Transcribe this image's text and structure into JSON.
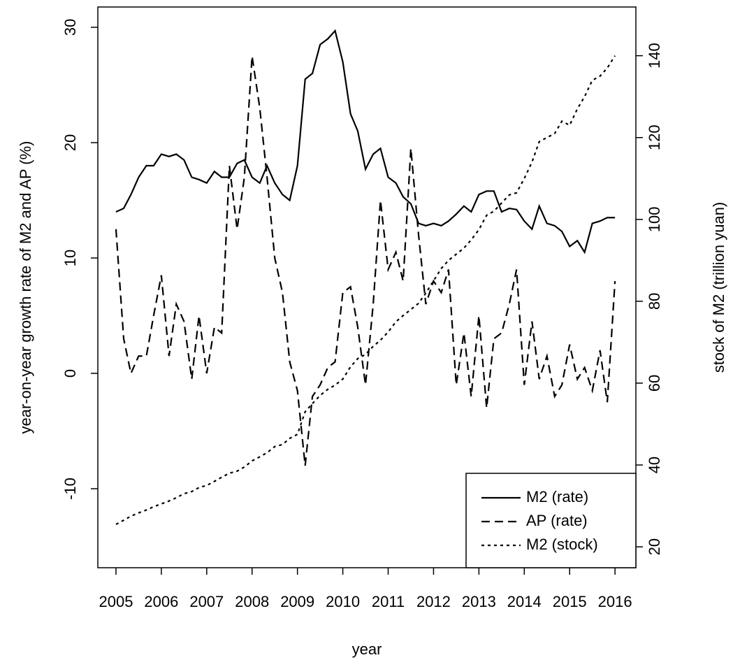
{
  "chart_data": {
    "type": "line",
    "xlabel": "year",
    "ylabel": "year-on-year growth rate of M2 and AP (%)",
    "y2label": "stock of M2 (trillion yuan)",
    "x": [
      2005,
      2005.17,
      2005.33,
      2005.5,
      2005.67,
      2005.83,
      2006,
      2006.17,
      2006.33,
      2006.5,
      2006.67,
      2006.83,
      2007,
      2007.17,
      2007.33,
      2007.5,
      2007.67,
      2007.83,
      2008,
      2008.17,
      2008.33,
      2008.5,
      2008.67,
      2008.83,
      2009,
      2009.17,
      2009.33,
      2009.5,
      2009.67,
      2009.83,
      2010,
      2010.17,
      2010.33,
      2010.5,
      2010.67,
      2010.83,
      2011,
      2011.17,
      2011.33,
      2011.5,
      2011.67,
      2011.83,
      2012,
      2012.17,
      2012.33,
      2012.5,
      2012.67,
      2012.83,
      2013,
      2013.17,
      2013.33,
      2013.5,
      2013.67,
      2013.83,
      2014,
      2014.17,
      2014.33,
      2014.5,
      2014.67,
      2014.83,
      2015,
      2015.17,
      2015.33,
      2015.5,
      2015.67,
      2015.83,
      2016
    ],
    "series": [
      {
        "name": "M2 (rate)",
        "color": "#000000",
        "style": "solid",
        "values": [
          14,
          14.3,
          15.5,
          17,
          18,
          18,
          19,
          18.8,
          19,
          18.5,
          17,
          16.8,
          16.5,
          17.5,
          17,
          17,
          18.2,
          18.5,
          17,
          16.5,
          18,
          16.5,
          15.5,
          15,
          18,
          25.5,
          26,
          28.5,
          29,
          29.7,
          27,
          22.5,
          21,
          17.7,
          19,
          19.5,
          17,
          16.5,
          15.3,
          14.7,
          13,
          12.8,
          13,
          12.8,
          13.2,
          13.8,
          14.5,
          14,
          15.5,
          15.8,
          15.8,
          14,
          14.3,
          14.2,
          13.2,
          12.5,
          14.5,
          13,
          12.8,
          12.3,
          11,
          11.5,
          10.5,
          13,
          13.2,
          13.5,
          13.5
        ]
      },
      {
        "name": "AP (rate)",
        "color": "#000000",
        "style": "dashed",
        "values": [
          12.5,
          3,
          0,
          1.5,
          1.5,
          5,
          8.5,
          1.5,
          6,
          4.5,
          -0.5,
          5,
          0,
          4,
          3.5,
          18,
          12.5,
          17,
          27.5,
          23,
          17,
          10,
          7,
          1,
          -1.5,
          -8,
          -2,
          -1,
          0.5,
          1,
          7,
          7.5,
          4,
          -1,
          6,
          15,
          9,
          10.5,
          8,
          19.5,
          12,
          6,
          8,
          7,
          9,
          -1,
          3.5,
          -2,
          5,
          -3,
          3,
          3.5,
          6,
          9,
          -1,
          4.5,
          -0.5,
          1.5,
          -2,
          -1,
          2.5,
          -0.5,
          0.5,
          -1.5,
          2,
          -2.5,
          8
        ]
      },
      {
        "name": "M2 (stock)",
        "color": "#000000",
        "style": "dotted",
        "axis": "y2",
        "values": [
          25.5,
          26.5,
          27.5,
          28.3,
          29,
          29.8,
          30.5,
          31.2,
          32,
          33,
          33.5,
          34.5,
          35,
          36,
          37,
          38,
          38.5,
          39.5,
          41,
          42,
          43,
          44.5,
          45,
          46.5,
          47.5,
          53,
          55,
          57,
          58.5,
          59.5,
          61,
          64,
          66,
          67,
          69,
          70.5,
          72.5,
          75,
          76.5,
          78,
          79.5,
          82,
          85,
          88,
          90,
          91.5,
          93,
          95,
          97.5,
          101,
          102,
          104,
          106,
          106.5,
          110,
          114,
          119,
          120,
          121,
          124,
          123,
          127,
          130,
          134,
          135,
          137,
          140
        ]
      }
    ],
    "xlim": [
      2004.6,
      2016.46
    ],
    "xticks": [
      2005,
      2006,
      2007,
      2008,
      2009,
      2010,
      2011,
      2012,
      2013,
      2014,
      2015,
      2016
    ],
    "ylim": [
      -16.85,
      31.76
    ],
    "yticks": [
      -10,
      0,
      10,
      20,
      30
    ],
    "y2lim": [
      14.9,
      151.9
    ],
    "y2ticks": [
      20,
      40,
      60,
      80,
      100,
      120,
      140
    ],
    "legend": "bottom-right"
  }
}
